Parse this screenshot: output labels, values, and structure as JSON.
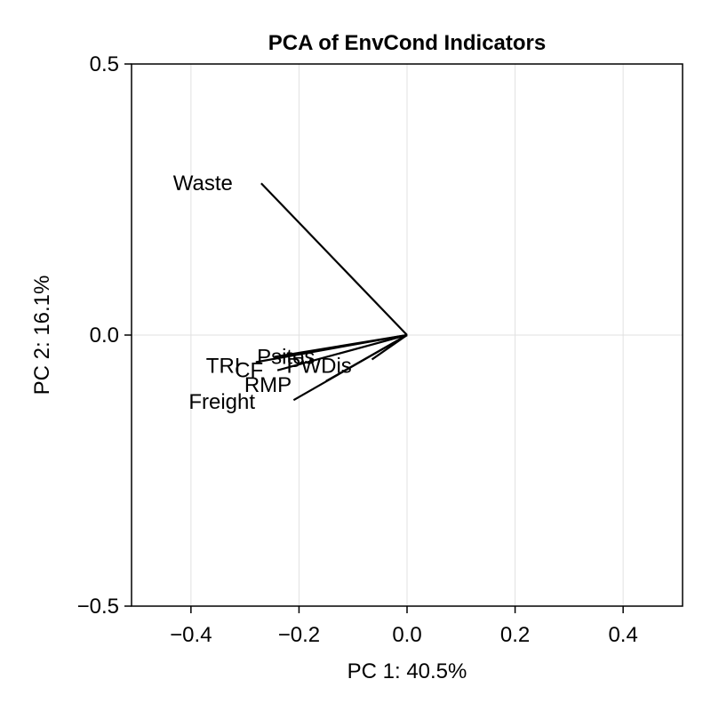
{
  "chart_data": {
    "type": "biplot",
    "title": "PCA of EnvCond Indicators",
    "xlabel": "PC 1: 40.5%",
    "ylabel": "PC 2: 16.1%",
    "xlim": [
      -0.51,
      0.51
    ],
    "ylim": [
      -0.5,
      0.5
    ],
    "xticks": [
      -0.4,
      -0.2,
      0.0,
      0.2,
      0.4
    ],
    "xtick_labels": [
      "−0.4",
      "−0.2",
      "0.0",
      "0.2",
      "0.4"
    ],
    "yticks": [
      -0.5,
      0.0,
      0.5
    ],
    "ytick_labels": [
      "−0.5",
      "0.0",
      "0.5"
    ],
    "grid": true,
    "vectors": [
      {
        "name": "Waste",
        "x": -0.27,
        "y": 0.28
      },
      {
        "name": "Psites",
        "x": -0.245,
        "y": -0.04
      },
      {
        "name": "TRI",
        "x": -0.28,
        "y": -0.05
      },
      {
        "name": "CF",
        "x": -0.24,
        "y": -0.065
      },
      {
        "name": "PWDis",
        "x": -0.065,
        "y": -0.045
      },
      {
        "name": "RMP",
        "x": -0.15,
        "y": -0.085
      },
      {
        "name": "Freight",
        "x": -0.21,
        "y": -0.12
      }
    ]
  }
}
